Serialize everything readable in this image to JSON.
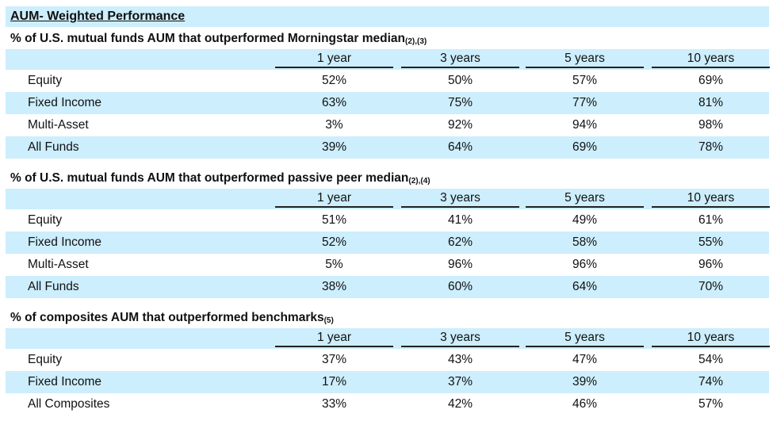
{
  "title": "AUM- Weighted Performance",
  "columns": [
    "1 year",
    "3 years",
    "5 years",
    "10 years"
  ],
  "sections": [
    {
      "subtitle": "% of U.S. mutual funds AUM that outperformed Morningstar median",
      "footnote": "(2),(3)",
      "rows": [
        {
          "label": "Equity",
          "values": [
            "52%",
            "50%",
            "57%",
            "69%"
          ]
        },
        {
          "label": "Fixed Income",
          "values": [
            "63%",
            "75%",
            "77%",
            "81%"
          ]
        },
        {
          "label": "Multi-Asset",
          "values": [
            "3%",
            "92%",
            "94%",
            "98%"
          ]
        },
        {
          "label": "All Funds",
          "values": [
            "39%",
            "64%",
            "69%",
            "78%"
          ]
        }
      ]
    },
    {
      "subtitle": "% of U.S. mutual funds AUM that outperformed passive peer median",
      "footnote": "(2),(4)",
      "rows": [
        {
          "label": "Equity",
          "values": [
            "51%",
            "41%",
            "49%",
            "61%"
          ]
        },
        {
          "label": "Fixed Income",
          "values": [
            "52%",
            "62%",
            "58%",
            "55%"
          ]
        },
        {
          "label": "Multi-Asset",
          "values": [
            "5%",
            "96%",
            "96%",
            "96%"
          ]
        },
        {
          "label": "All Funds",
          "values": [
            "38%",
            "60%",
            "64%",
            "70%"
          ]
        }
      ]
    },
    {
      "subtitle": "% of composites AUM that outperformed benchmarks",
      "footnote": "(5)",
      "rows": [
        {
          "label": "Equity",
          "values": [
            "37%",
            "43%",
            "47%",
            "54%"
          ]
        },
        {
          "label": "Fixed Income",
          "values": [
            "17%",
            "37%",
            "39%",
            "74%"
          ]
        },
        {
          "label": "All Composites",
          "values": [
            "33%",
            "42%",
            "46%",
            "57%"
          ]
        }
      ]
    }
  ],
  "colors": {
    "stripe": "#cdeefc"
  }
}
